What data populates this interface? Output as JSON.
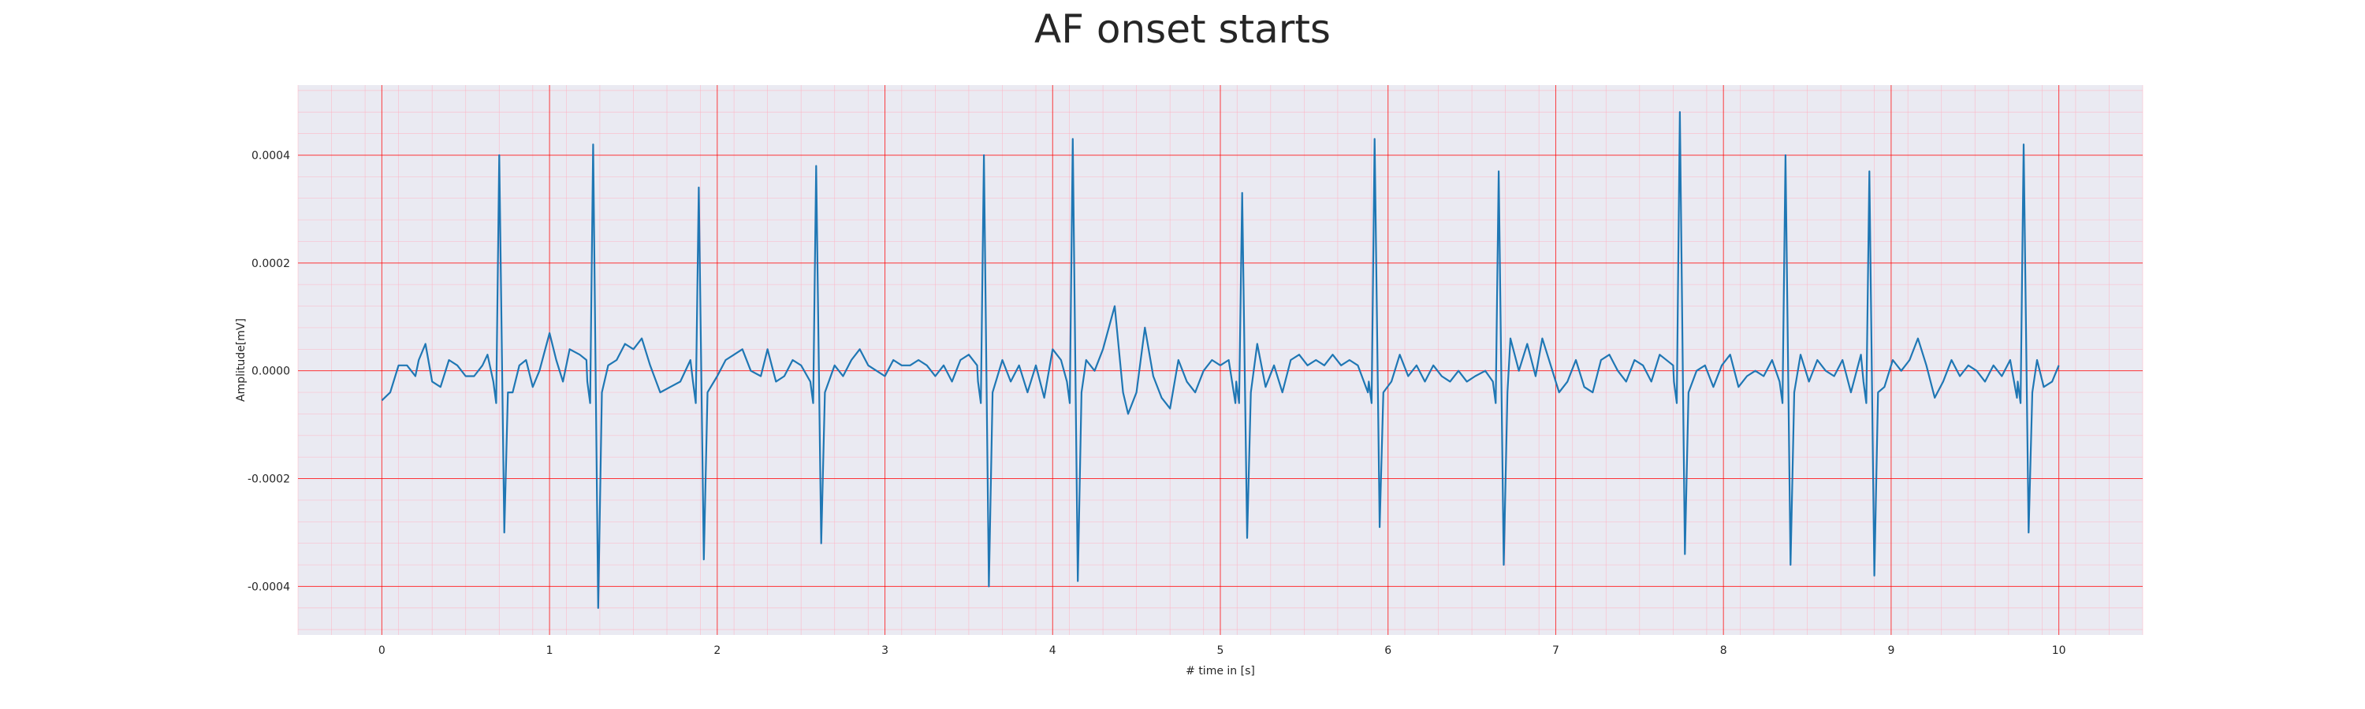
{
  "chart_data": {
    "type": "line",
    "title": "AF onset starts",
    "xlabel": "# time in [s]",
    "ylabel": "Amplitude[mV]",
    "xlim": [
      -0.5,
      10.5
    ],
    "ylim": [
      -0.00049,
      0.00053
    ],
    "xticks": [
      0,
      1,
      2,
      3,
      4,
      5,
      6,
      7,
      8,
      9,
      10
    ],
    "xtick_labels": [
      "0",
      "1",
      "2",
      "3",
      "4",
      "5",
      "6",
      "7",
      "8",
      "9",
      "10"
    ],
    "yticks": [
      -0.0004,
      -0.0002,
      0.0,
      0.0002,
      0.0004
    ],
    "ytick_labels": [
      "-0.0004",
      "-0.0002",
      "0.0000",
      "0.0002",
      "0.0004"
    ],
    "grid": true,
    "colors": {
      "line": "#1f77b4",
      "background": "#eaeaf2",
      "major_grid": "#ff0000",
      "minor_grid": "#ffb0c0"
    },
    "series": [
      {
        "name": "",
        "beats": [
          {
            "t": 0.7,
            "peak": 0.0004,
            "trough": -0.0003
          },
          {
            "t": 1.26,
            "peak": 0.00042,
            "trough": -0.00044
          },
          {
            "t": 1.89,
            "peak": 0.00034,
            "trough": -0.00035
          },
          {
            "t": 2.59,
            "peak": 0.00038,
            "trough": -0.00032
          },
          {
            "t": 3.59,
            "peak": 0.0004,
            "trough": -0.0004
          },
          {
            "t": 4.12,
            "peak": 0.00043,
            "trough": -0.00039
          },
          {
            "t": 5.13,
            "peak": 0.00033,
            "trough": -0.00031
          },
          {
            "t": 5.92,
            "peak": 0.00043,
            "trough": -0.00029
          },
          {
            "t": 6.66,
            "peak": 0.00037,
            "trough": -0.00036
          },
          {
            "t": 7.74,
            "peak": 0.00048,
            "trough": -0.00034
          },
          {
            "t": 8.37,
            "peak": 0.0004,
            "trough": -0.00036
          },
          {
            "t": 8.87,
            "peak": 0.00037,
            "trough": -0.00038
          },
          {
            "t": 9.79,
            "peak": 0.00042,
            "trough": -0.0003
          }
        ],
        "baseline_points": [
          [
            0.0,
            -5.5e-05
          ],
          [
            0.05,
            -4e-05
          ],
          [
            0.1,
            1e-05
          ],
          [
            0.15,
            1e-05
          ],
          [
            0.2,
            -1e-05
          ],
          [
            0.22,
            2e-05
          ],
          [
            0.26,
            5e-05
          ],
          [
            0.3,
            -2e-05
          ],
          [
            0.35,
            -3e-05
          ],
          [
            0.4,
            2e-05
          ],
          [
            0.45,
            1e-05
          ],
          [
            0.5,
            -1e-05
          ],
          [
            0.55,
            -1e-05
          ],
          [
            0.6,
            1e-05
          ],
          [
            0.63,
            3e-05
          ],
          [
            0.66,
            -3e-05
          ],
          [
            0.68,
            -0.0001
          ],
          [
            0.74,
            -0.0001
          ],
          [
            0.78,
            -4e-05
          ],
          [
            0.82,
            1e-05
          ],
          [
            0.86,
            2e-05
          ],
          [
            0.9,
            -3e-05
          ],
          [
            0.94,
            0.0
          ],
          [
            1.0,
            7e-05
          ],
          [
            1.04,
            2e-05
          ],
          [
            1.08,
            -2e-05
          ],
          [
            1.12,
            4e-05
          ],
          [
            1.18,
            3e-05
          ],
          [
            1.22,
            2e-05
          ],
          [
            1.31,
            0.0
          ],
          [
            1.35,
            1e-05
          ],
          [
            1.4,
            2e-05
          ],
          [
            1.45,
            5e-05
          ],
          [
            1.5,
            4e-05
          ],
          [
            1.55,
            6e-05
          ],
          [
            1.6,
            1e-05
          ],
          [
            1.66,
            -4e-05
          ],
          [
            1.72,
            -3e-05
          ],
          [
            1.78,
            -2e-05
          ],
          [
            1.84,
            2e-05
          ],
          [
            1.94,
            0.0
          ],
          [
            2.0,
            -1e-05
          ],
          [
            2.05,
            2e-05
          ],
          [
            2.1,
            3e-05
          ],
          [
            2.15,
            4e-05
          ],
          [
            2.2,
            0.0
          ],
          [
            2.26,
            -1e-05
          ],
          [
            2.3,
            4e-05
          ],
          [
            2.35,
            -2e-05
          ],
          [
            2.4,
            -1e-05
          ],
          [
            2.45,
            2e-05
          ],
          [
            2.5,
            1e-05
          ],
          [
            2.56,
            -5e-05
          ],
          [
            2.63,
            0.0
          ],
          [
            2.7,
            1e-05
          ],
          [
            2.75,
            -1e-05
          ],
          [
            2.8,
            2e-05
          ],
          [
            2.85,
            4e-05
          ],
          [
            2.9,
            1e-05
          ],
          [
            2.95,
            0.0
          ],
          [
            3.0,
            -1e-05
          ],
          [
            3.05,
            2e-05
          ],
          [
            3.1,
            1e-05
          ],
          [
            3.15,
            1e-05
          ],
          [
            3.2,
            2e-05
          ],
          [
            3.25,
            1e-05
          ],
          [
            3.3,
            -1e-05
          ],
          [
            3.35,
            1e-05
          ],
          [
            3.4,
            -2e-05
          ],
          [
            3.45,
            2e-05
          ],
          [
            3.5,
            3e-05
          ],
          [
            3.55,
            1e-05
          ],
          [
            3.64,
            -2e-05
          ],
          [
            3.7,
            2e-05
          ],
          [
            3.75,
            -2e-05
          ],
          [
            3.8,
            1e-05
          ],
          [
            3.85,
            -4e-05
          ],
          [
            3.9,
            1e-05
          ],
          [
            3.95,
            -5e-05
          ],
          [
            4.0,
            4e-05
          ],
          [
            4.05,
            2e-05
          ],
          [
            4.09,
            -8e-05
          ],
          [
            4.16,
            -5e-05
          ],
          [
            4.2,
            2e-05
          ],
          [
            4.25,
            0.0
          ],
          [
            4.3,
            4e-05
          ],
          [
            4.37,
            0.00012
          ],
          [
            4.42,
            -4e-05
          ],
          [
            4.45,
            -8e-05
          ],
          [
            4.5,
            -4e-05
          ],
          [
            4.55,
            8e-05
          ],
          [
            4.6,
            -1e-05
          ],
          [
            4.65,
            -5e-05
          ],
          [
            4.7,
            -7e-05
          ],
          [
            4.75,
            2e-05
          ],
          [
            4.8,
            -2e-05
          ],
          [
            4.85,
            -4e-05
          ],
          [
            4.9,
            0.0
          ],
          [
            4.95,
            2e-05
          ],
          [
            5.0,
            1e-05
          ],
          [
            5.05,
            2e-05
          ],
          [
            5.09,
            -6e-05
          ],
          [
            5.18,
            -2e-05
          ],
          [
            5.22,
            5e-05
          ],
          [
            5.27,
            -3e-05
          ],
          [
            5.32,
            1e-05
          ],
          [
            5.37,
            -4e-05
          ],
          [
            5.42,
            2e-05
          ],
          [
            5.47,
            3e-05
          ],
          [
            5.52,
            1e-05
          ],
          [
            5.57,
            2e-05
          ],
          [
            5.62,
            1e-05
          ],
          [
            5.67,
            3e-05
          ],
          [
            5.72,
            1e-05
          ],
          [
            5.77,
            2e-05
          ],
          [
            5.82,
            1e-05
          ],
          [
            5.88,
            -4e-05
          ],
          [
            5.96,
            -6e-05
          ],
          [
            6.02,
            -2e-05
          ],
          [
            6.07,
            3e-05
          ],
          [
            6.12,
            -1e-05
          ],
          [
            6.17,
            1e-05
          ],
          [
            6.22,
            -2e-05
          ],
          [
            6.27,
            1e-05
          ],
          [
            6.32,
            -1e-05
          ],
          [
            6.37,
            -2e-05
          ],
          [
            6.42,
            0.0
          ],
          [
            6.47,
            -2e-05
          ],
          [
            6.52,
            -1e-05
          ],
          [
            6.58,
            0.0
          ],
          [
            6.63,
            -3e-05
          ],
          [
            6.7,
            4e-05
          ],
          [
            6.73,
            6e-05
          ],
          [
            6.78,
            0.0
          ],
          [
            6.83,
            5e-05
          ],
          [
            6.88,
            -1e-05
          ],
          [
            6.92,
            6e-05
          ],
          [
            6.97,
            1e-05
          ],
          [
            7.02,
            -4e-05
          ],
          [
            7.07,
            -2e-05
          ],
          [
            7.12,
            2e-05
          ],
          [
            7.17,
            -3e-05
          ],
          [
            7.22,
            -4e-05
          ],
          [
            7.27,
            2e-05
          ],
          [
            7.32,
            3e-05
          ],
          [
            7.37,
            0.0
          ],
          [
            7.42,
            -2e-05
          ],
          [
            7.47,
            2e-05
          ],
          [
            7.52,
            1e-05
          ],
          [
            7.57,
            -2e-05
          ],
          [
            7.62,
            3e-05
          ],
          [
            7.7,
            1e-05
          ],
          [
            7.79,
            -3e-05
          ],
          [
            7.84,
            0.0
          ],
          [
            7.89,
            1e-05
          ],
          [
            7.94,
            -3e-05
          ],
          [
            7.99,
            1e-05
          ],
          [
            8.04,
            3e-05
          ],
          [
            8.09,
            -3e-05
          ],
          [
            8.14,
            -1e-05
          ],
          [
            8.19,
            0.0
          ],
          [
            8.24,
            -1e-05
          ],
          [
            8.29,
            2e-05
          ],
          [
            8.34,
            1e-05
          ],
          [
            8.41,
            -2e-05
          ],
          [
            8.46,
            3e-05
          ],
          [
            8.51,
            -2e-05
          ],
          [
            8.56,
            2e-05
          ],
          [
            8.61,
            0.0
          ],
          [
            8.66,
            -1e-05
          ],
          [
            8.71,
            2e-05
          ],
          [
            8.76,
            -4e-05
          ],
          [
            8.82,
            3e-05
          ],
          [
            8.91,
            0.0
          ],
          [
            8.96,
            -3e-05
          ],
          [
            9.01,
            2e-05
          ],
          [
            9.06,
            0.0
          ],
          [
            9.11,
            2e-05
          ],
          [
            9.16,
            6e-05
          ],
          [
            9.21,
            1e-05
          ],
          [
            9.26,
            -5e-05
          ],
          [
            9.31,
            -2e-05
          ],
          [
            9.36,
            2e-05
          ],
          [
            9.41,
            -1e-05
          ],
          [
            9.46,
            1e-05
          ],
          [
            9.51,
            0.0
          ],
          [
            9.56,
            -2e-05
          ],
          [
            9.61,
            1e-05
          ],
          [
            9.66,
            -1e-05
          ],
          [
            9.71,
            2e-05
          ],
          [
            9.75,
            -5e-05
          ],
          [
            9.83,
            -2e-05
          ],
          [
            9.87,
            2e-05
          ],
          [
            9.91,
            -3e-05
          ],
          [
            9.96,
            -2e-05
          ],
          [
            10.0,
            1e-05
          ]
        ]
      }
    ]
  }
}
